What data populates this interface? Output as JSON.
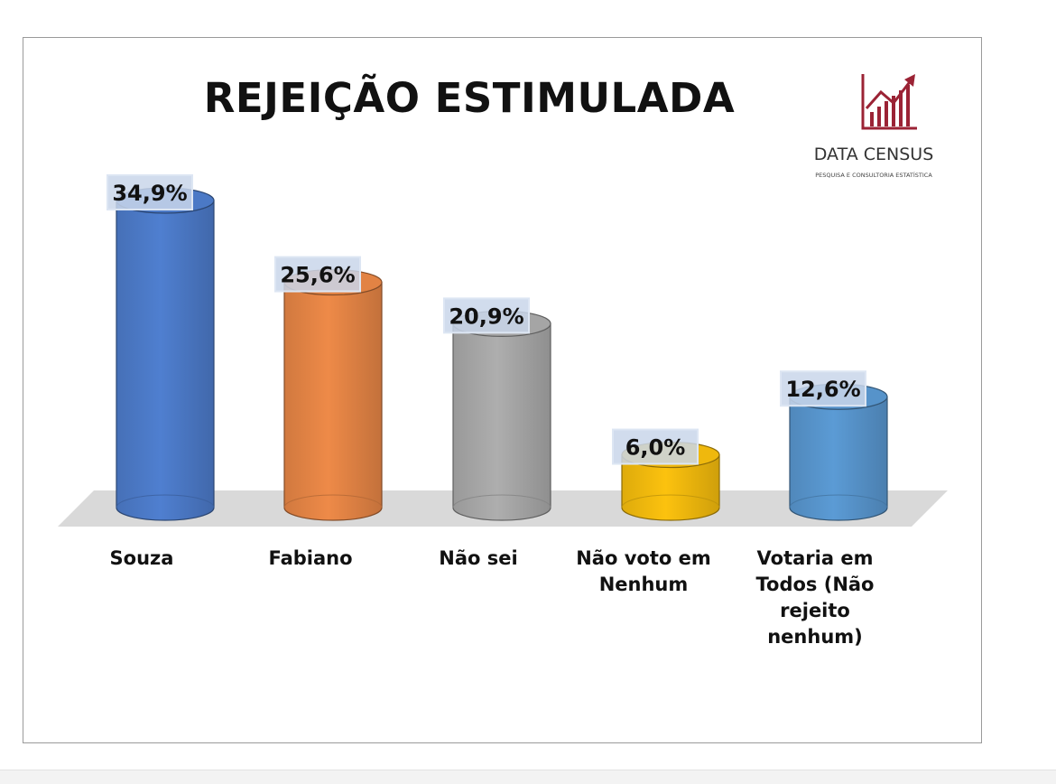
{
  "title": "REJEIÇÃO ESTIMULADA",
  "logo": {
    "name": "DATA CENSUS",
    "tagline": "PESQUISA E CONSULTORIA ESTATÍSTICA",
    "icon": "bar-chart-arrow-icon",
    "color": "#9b2335"
  },
  "chart_data": {
    "type": "bar",
    "style": "3d-cylinder",
    "title": "REJEIÇÃO ESTIMULADA",
    "xlabel": "",
    "ylabel": "",
    "grid": false,
    "legend": "none",
    "categories": [
      "Souza",
      "Fabiano",
      "Não sei",
      "Não voto em Nenhum",
      "Votaria em Todos (Não rejeito nenhum)"
    ],
    "category_lines": [
      [
        "Souza"
      ],
      [
        "Fabiano"
      ],
      [
        "Não sei"
      ],
      [
        "Não voto em",
        "Nenhum"
      ],
      [
        "Votaria em",
        "Todos (Não",
        "rejeito",
        "nenhum)"
      ]
    ],
    "values": [
      34.9,
      25.6,
      20.9,
      6.0,
      12.6
    ],
    "value_labels": [
      "34,9%",
      "25,6%",
      "20,9%",
      "6,0%",
      "12,6%"
    ],
    "colors": [
      "#4f7fd0",
      "#ee8a48",
      "#aeaeae",
      "#fcc20e",
      "#5b9bd5"
    ],
    "ylim": [
      0,
      35
    ]
  }
}
